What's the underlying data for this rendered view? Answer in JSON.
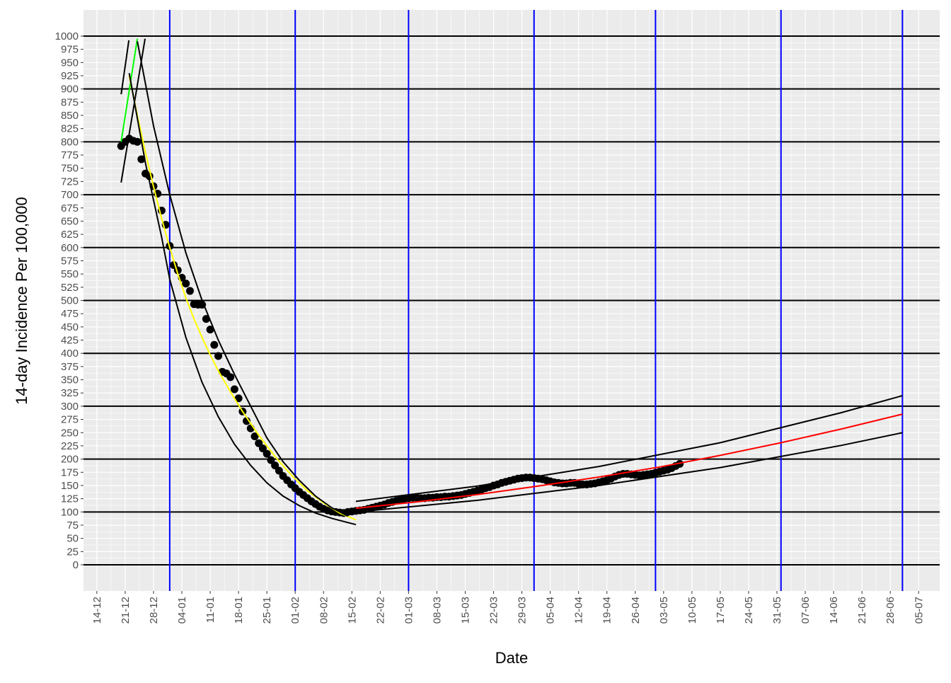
{
  "chart_data": {
    "type": "line",
    "x_label": "Date",
    "y_label": "14-day Incidence Per 100,000",
    "xlim": [
      -3.3,
      208.2
    ],
    "ylim": [
      -49.5,
      1049.5
    ],
    "grid": true,
    "xticks": [
      {
        "value": 0,
        "label": "14-12"
      },
      {
        "value": 7,
        "label": "21-12"
      },
      {
        "value": 14,
        "label": "28-12"
      },
      {
        "value": 21,
        "label": "04-01"
      },
      {
        "value": 28,
        "label": "11-01"
      },
      {
        "value": 35,
        "label": "18-01"
      },
      {
        "value": 42,
        "label": "25-01"
      },
      {
        "value": 49,
        "label": "01-02"
      },
      {
        "value": 56,
        "label": "08-02"
      },
      {
        "value": 63,
        "label": "15-02"
      },
      {
        "value": 70,
        "label": "22-02"
      },
      {
        "value": 77,
        "label": "01-03"
      },
      {
        "value": 84,
        "label": "08-03"
      },
      {
        "value": 91,
        "label": "15-03"
      },
      {
        "value": 98,
        "label": "22-03"
      },
      {
        "value": 105,
        "label": "29-03"
      },
      {
        "value": 112,
        "label": "05-04"
      },
      {
        "value": 119,
        "label": "12-04"
      },
      {
        "value": 126,
        "label": "19-04"
      },
      {
        "value": 133,
        "label": "26-04"
      },
      {
        "value": 140,
        "label": "03-05"
      },
      {
        "value": 147,
        "label": "10-05"
      },
      {
        "value": 154,
        "label": "17-05"
      },
      {
        "value": 161,
        "label": "24-05"
      },
      {
        "value": 168,
        "label": "31-05"
      },
      {
        "value": 175,
        "label": "07-06"
      },
      {
        "value": 182,
        "label": "14-06"
      },
      {
        "value": 189,
        "label": "21-06"
      },
      {
        "value": 196,
        "label": "28-06"
      },
      {
        "value": 203,
        "label": "05-07"
      }
    ],
    "yticks": [
      0,
      25,
      50,
      75,
      100,
      125,
      150,
      175,
      200,
      225,
      250,
      275,
      300,
      325,
      350,
      375,
      400,
      425,
      450,
      475,
      500,
      525,
      550,
      575,
      600,
      625,
      650,
      675,
      700,
      725,
      750,
      775,
      800,
      825,
      850,
      875,
      900,
      925,
      950,
      975,
      1000
    ],
    "hlines": [
      0,
      100,
      200,
      300,
      400,
      500,
      600,
      700,
      800,
      900,
      1000
    ],
    "hline_color": "#000000",
    "vlines": [
      18,
      49,
      77,
      108,
      138,
      169,
      199
    ],
    "vline_color": "#0000ff",
    "series": [
      {
        "color": "#000000",
        "style": "points",
        "x": [
          6,
          7,
          8,
          9,
          10,
          11,
          12,
          13,
          14,
          15,
          16,
          17,
          18,
          19,
          20,
          21,
          22,
          23,
          24,
          25,
          26,
          27,
          28,
          29,
          30,
          31,
          32,
          33,
          34,
          35,
          36,
          37,
          38,
          39,
          40,
          41,
          42,
          43,
          44,
          45,
          46,
          47,
          48,
          49,
          50,
          51,
          52,
          53,
          54,
          55,
          56,
          57,
          58,
          59,
          60,
          61,
          62,
          63,
          64,
          65,
          66,
          67,
          68,
          69,
          70,
          71,
          72,
          73,
          74,
          75,
          76,
          77,
          78,
          79,
          80,
          81,
          82,
          83,
          84,
          85,
          86,
          87,
          88,
          89,
          90,
          91,
          92,
          93,
          94,
          95,
          96,
          97,
          98,
          99,
          100,
          101,
          102,
          103,
          104,
          105,
          106,
          107,
          108,
          109,
          110,
          111,
          112,
          113,
          114,
          115,
          116,
          117,
          118,
          119,
          120,
          121,
          122,
          123,
          124,
          125,
          126,
          127,
          128,
          129,
          130,
          131,
          132,
          133,
          134,
          135,
          136,
          137,
          138,
          139,
          140,
          141,
          142,
          143,
          144
        ],
        "values": [
          792,
          800,
          806,
          802,
          800,
          767,
          740,
          735,
          716,
          702,
          670,
          643,
          603,
          567,
          557,
          543,
          532,
          518,
          493,
          492,
          492,
          465,
          445,
          416,
          395,
          365,
          362,
          355,
          332,
          315,
          290,
          272,
          258,
          243,
          230,
          220,
          210,
          198,
          188,
          178,
          168,
          160,
          152,
          145,
          138,
          132,
          126,
          120,
          115,
          110,
          106,
          103,
          101,
          100,
          99,
          98,
          100,
          101,
          102,
          103,
          104,
          106,
          108,
          110,
          112,
          114,
          117,
          119,
          121,
          123,
          125,
          126,
          127,
          127,
          126,
          126,
          127,
          127,
          128,
          128,
          129,
          129,
          130,
          131,
          132,
          134,
          136,
          138,
          140,
          142,
          145,
          147,
          150,
          152,
          155,
          157,
          159,
          161,
          163,
          164,
          165,
          165,
          164,
          163,
          162,
          160,
          158,
          156,
          155,
          154,
          154,
          155,
          155,
          153,
          152,
          152,
          153,
          154,
          156,
          158,
          160,
          163,
          167,
          170,
          172,
          172,
          171,
          170,
          169,
          170,
          171,
          172,
          174,
          176,
          178,
          180,
          183,
          187,
          191
        ]
      },
      {
        "color": "#00ff00",
        "style": "line",
        "x": [
          6,
          10
        ],
        "values": [
          800,
          995
        ]
      },
      {
        "color": "#000000",
        "style": "line",
        "x": [
          6,
          7.9
        ],
        "values": [
          890,
          992
        ]
      },
      {
        "color": "#000000",
        "style": "line",
        "x": [
          6,
          11.9
        ],
        "values": [
          723,
          995
        ]
      },
      {
        "color": "#ffff00",
        "style": "line",
        "x": [
          8,
          10,
          12,
          14,
          16,
          18,
          20,
          22,
          24,
          26,
          28,
          30,
          33,
          36,
          40,
          44,
          48,
          52,
          56,
          60,
          64
        ],
        "values": [
          925,
          850,
          780,
          715,
          655,
          600,
          550,
          505,
          465,
          430,
          397,
          367,
          327,
          290,
          245,
          205,
          170,
          140,
          117,
          98,
          85
        ]
      },
      {
        "color": "#000000",
        "style": "line",
        "x": [
          8,
          12,
          16,
          18,
          22,
          26,
          30,
          34,
          38,
          42,
          46,
          50,
          54,
          58,
          62,
          64
        ],
        "values": [
          930,
          760,
          620,
          540,
          430,
          345,
          280,
          228,
          188,
          155,
          130,
          112,
          98,
          88,
          80,
          76
        ]
      },
      {
        "color": "#000000",
        "style": "line",
        "x": [
          10,
          14,
          18,
          22,
          26,
          30,
          34,
          38,
          42,
          46,
          50,
          54,
          58,
          62
        ],
        "values": [
          990,
          830,
          700,
          590,
          500,
          425,
          360,
          300,
          240,
          195,
          160,
          130,
          108,
          92
        ]
      },
      {
        "color": "#ff0000",
        "style": "line",
        "x": [
          64,
          79,
          94,
          109,
          124,
          139,
          154,
          169,
          184,
          199
        ],
        "values": [
          107,
          119,
          133,
          149,
          166,
          185,
          207,
          231,
          257,
          285
        ]
      },
      {
        "color": "#000000",
        "style": "line",
        "x": [
          64,
          94,
          124,
          154,
          184,
          199
        ],
        "values": [
          120,
          149,
          186,
          231,
          288,
          320
        ]
      },
      {
        "color": "#000000",
        "style": "line",
        "x": [
          64,
          94,
          124,
          154,
          184,
          199
        ],
        "values": [
          100,
          122,
          150,
          184,
          226,
          250
        ]
      }
    ]
  }
}
